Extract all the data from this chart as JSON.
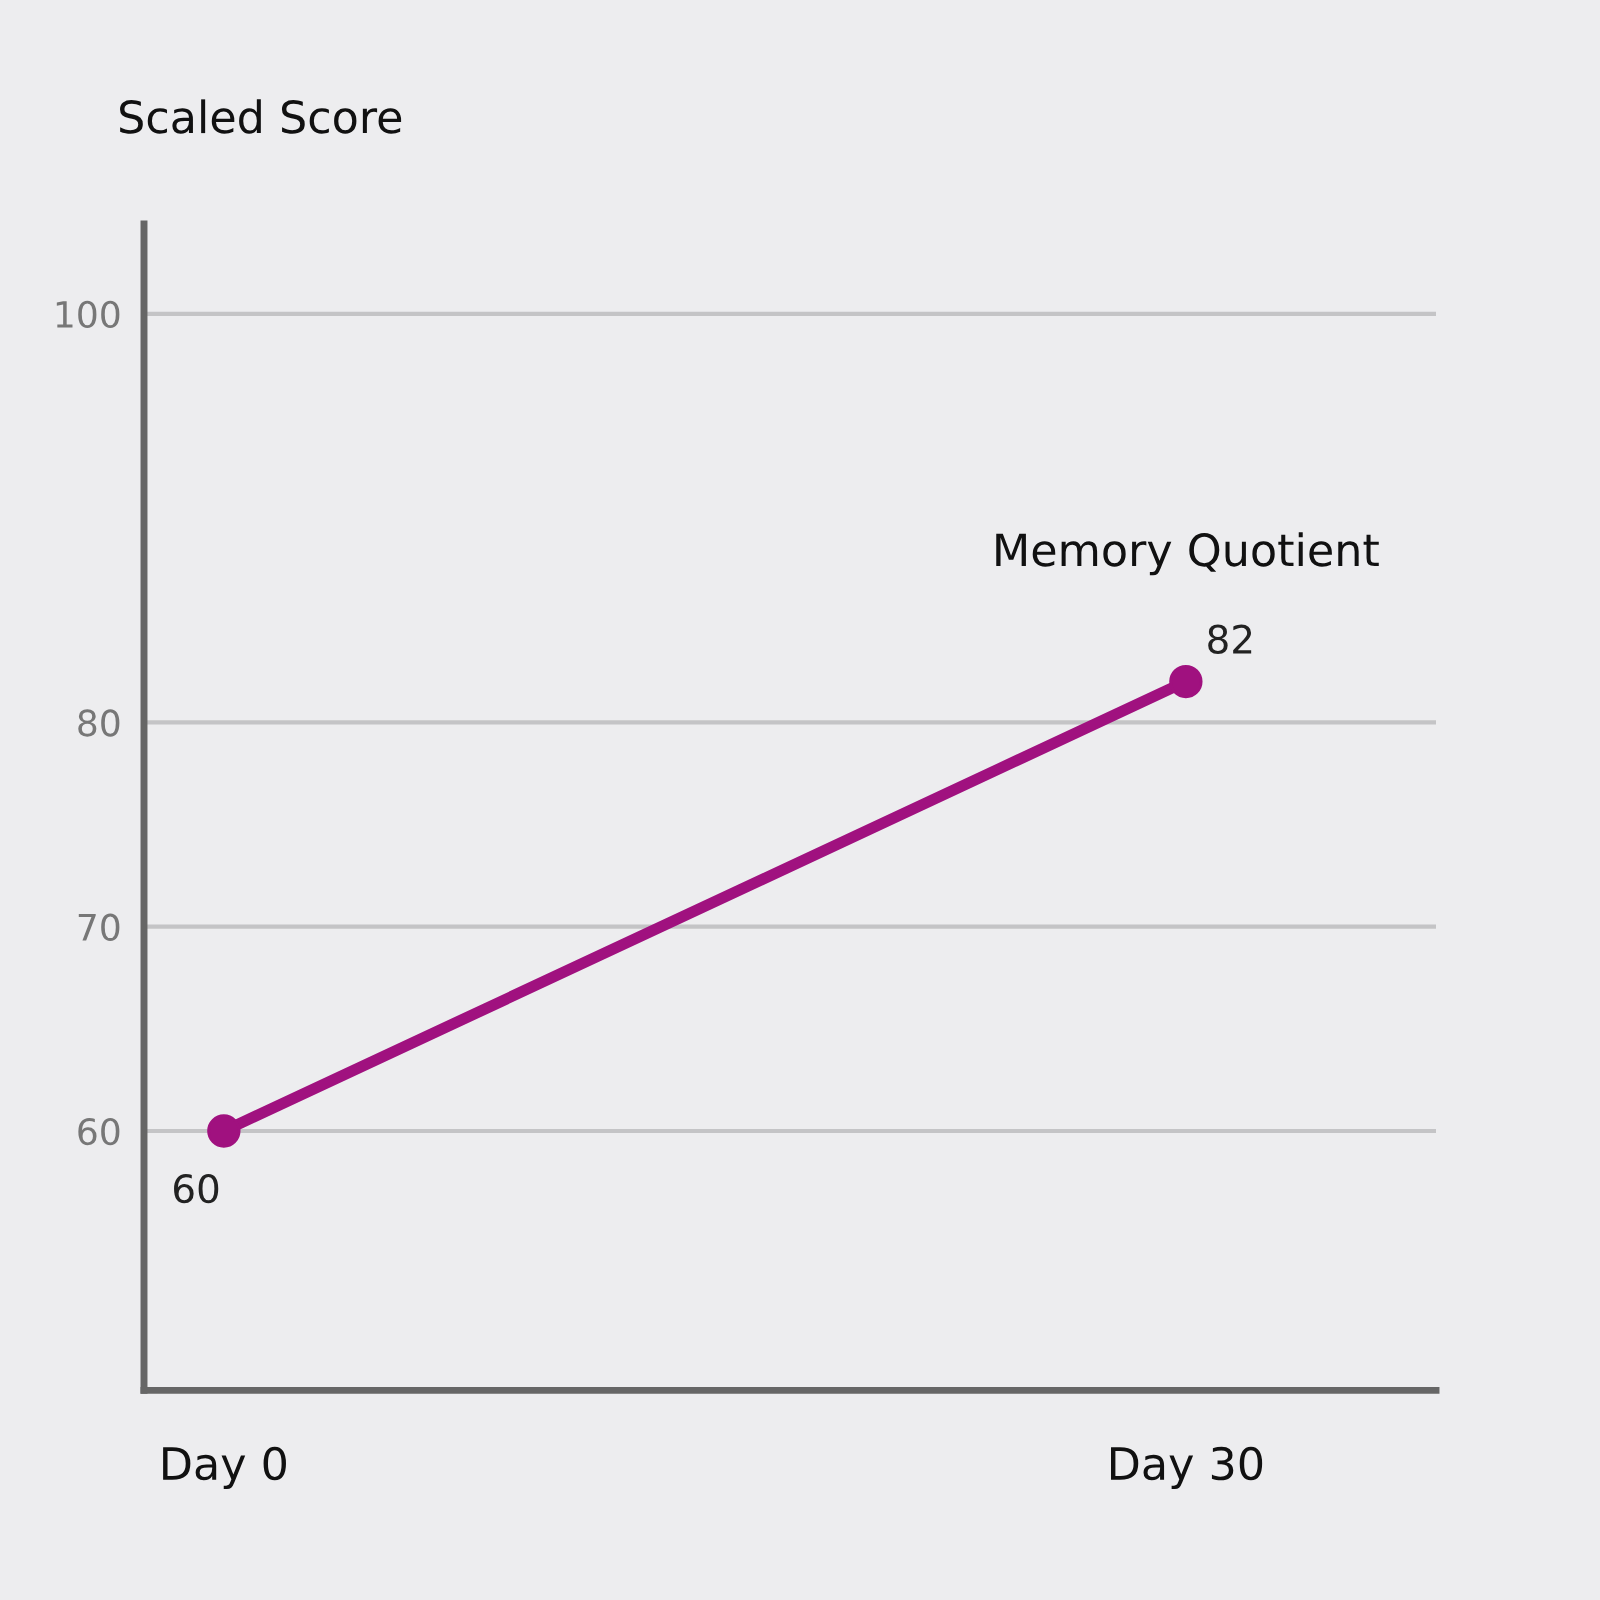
{
  "chart_data": {
    "type": "line",
    "ylabel": "Scaled Score",
    "categories": [
      "Day 0",
      "Day 30"
    ],
    "series": [
      {
        "name": "Memory Quotient",
        "color": "#a0117f",
        "values": [
          60,
          82
        ]
      }
    ],
    "ylim": [
      47.3,
      104.4
    ],
    "yticks": [
      60,
      70,
      80,
      100
    ],
    "grid": "y",
    "marker": "circle",
    "line_style": "solid",
    "data_labels": true
  }
}
